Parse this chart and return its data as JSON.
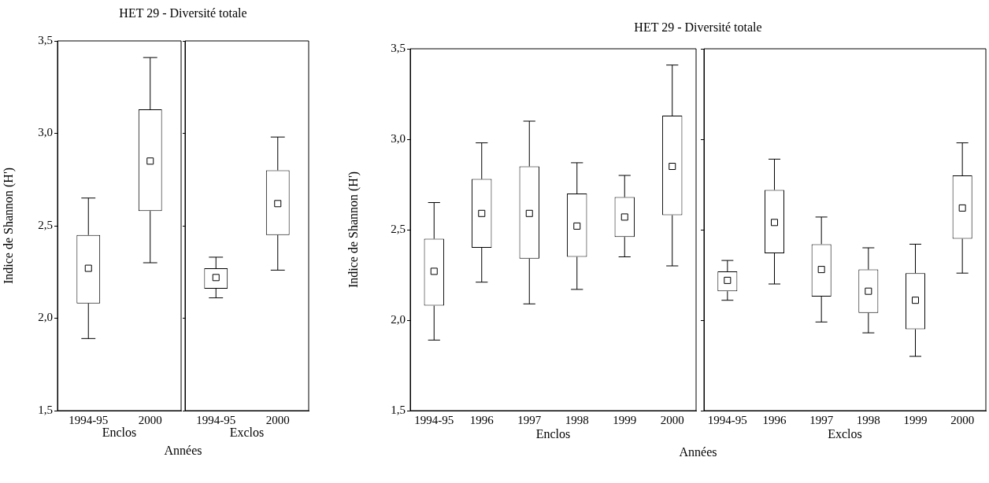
{
  "chart_data": [
    {
      "type": "box",
      "title": "HET 29 - Diversité totale",
      "ylabel": "Indice de Shannon (H')",
      "xlabel": "Enclos",
      "annotations": [
        "Années"
      ],
      "categories": [
        "1994-95",
        "2000"
      ],
      "ylim": [
        1.5,
        3.5
      ],
      "yticks": [
        {
          "value": 1.5,
          "label": "1,5"
        },
        {
          "value": 2,
          "label": "2,0"
        },
        {
          "value": 2.5,
          "label": "2,5"
        },
        {
          "value": 3,
          "label": "3,0"
        },
        {
          "value": 3.5,
          "label": "3,5"
        }
      ],
      "boxes": [
        {
          "low": 1.89,
          "q1": 2.08,
          "median": 2.27,
          "q3": 2.45,
          "high": 2.65
        },
        {
          "low": 2.3,
          "q1": 2.58,
          "median": 2.85,
          "q3": 3.13,
          "high": 3.41
        }
      ]
    },
    {
      "type": "box",
      "xlabel": "Exclos",
      "categories": [
        "1994-95",
        "2000"
      ],
      "ylim": [
        1.5,
        3.5
      ],
      "yticks": [
        1.5,
        2,
        2.5,
        3,
        3.5
      ],
      "tick_labels": "x",
      "boxes": [
        {
          "low": 2.11,
          "q1": 2.16,
          "median": 2.22,
          "q3": 2.27,
          "high": 2.33
        },
        {
          "low": 2.26,
          "q1": 2.45,
          "median": 2.62,
          "q3": 2.8,
          "high": 2.98
        }
      ]
    },
    {
      "type": "box",
      "title": "HET 29 - Diversité totale",
      "ylabel": "Indice de Shannon (H')",
      "xlabel": "Enclos",
      "annotations": [
        "Années"
      ],
      "categories": [
        "1994-95",
        "1996",
        "1997",
        "1998",
        "1999",
        "2000"
      ],
      "ylim": [
        1.5,
        3.5
      ],
      "yticks": [
        {
          "value": 1.5,
          "label": "1,5"
        },
        {
          "value": 2,
          "label": "2,0"
        },
        {
          "value": 2.5,
          "label": "2,5"
        },
        {
          "value": 3,
          "label": "3,0"
        },
        {
          "value": 3.5,
          "label": "3,5"
        }
      ],
      "boxes": [
        {
          "low": 1.89,
          "q1": 2.08,
          "median": 2.27,
          "q3": 2.45,
          "high": 2.65
        },
        {
          "low": 2.21,
          "q1": 2.4,
          "median": 2.59,
          "q3": 2.78,
          "high": 2.98
        },
        {
          "low": 2.09,
          "q1": 2.34,
          "median": 2.59,
          "q3": 2.85,
          "high": 3.1
        },
        {
          "low": 2.17,
          "q1": 2.35,
          "median": 2.52,
          "q3": 2.7,
          "high": 2.87
        },
        {
          "low": 2.35,
          "q1": 2.46,
          "median": 2.57,
          "q3": 2.68,
          "high": 2.8
        },
        {
          "low": 2.3,
          "q1": 2.58,
          "median": 2.85,
          "q3": 3.13,
          "high": 3.41
        }
      ]
    },
    {
      "type": "box",
      "xlabel": "Exclos",
      "categories": [
        "1994-95",
        "1996",
        "1997",
        "1998",
        "1999",
        "2000"
      ],
      "ylim": [
        1.5,
        3.5
      ],
      "yticks": [
        1.5,
        2,
        2.5,
        3,
        3.5
      ],
      "tick_labels": "x",
      "boxes": [
        {
          "low": 2.11,
          "q1": 2.16,
          "median": 2.22,
          "q3": 2.27,
          "high": 2.33
        },
        {
          "low": 2.2,
          "q1": 2.37,
          "median": 2.54,
          "q3": 2.72,
          "high": 2.89
        },
        {
          "low": 1.99,
          "q1": 2.13,
          "median": 2.28,
          "q3": 2.42,
          "high": 2.57
        },
        {
          "low": 1.93,
          "q1": 2.04,
          "median": 2.16,
          "q3": 2.28,
          "high": 2.4
        },
        {
          "low": 1.8,
          "q1": 1.95,
          "median": 2.11,
          "q3": 2.26,
          "high": 2.42
        },
        {
          "low": 2.26,
          "q1": 2.45,
          "median": 2.62,
          "q3": 2.8,
          "high": 2.98
        }
      ]
    }
  ]
}
